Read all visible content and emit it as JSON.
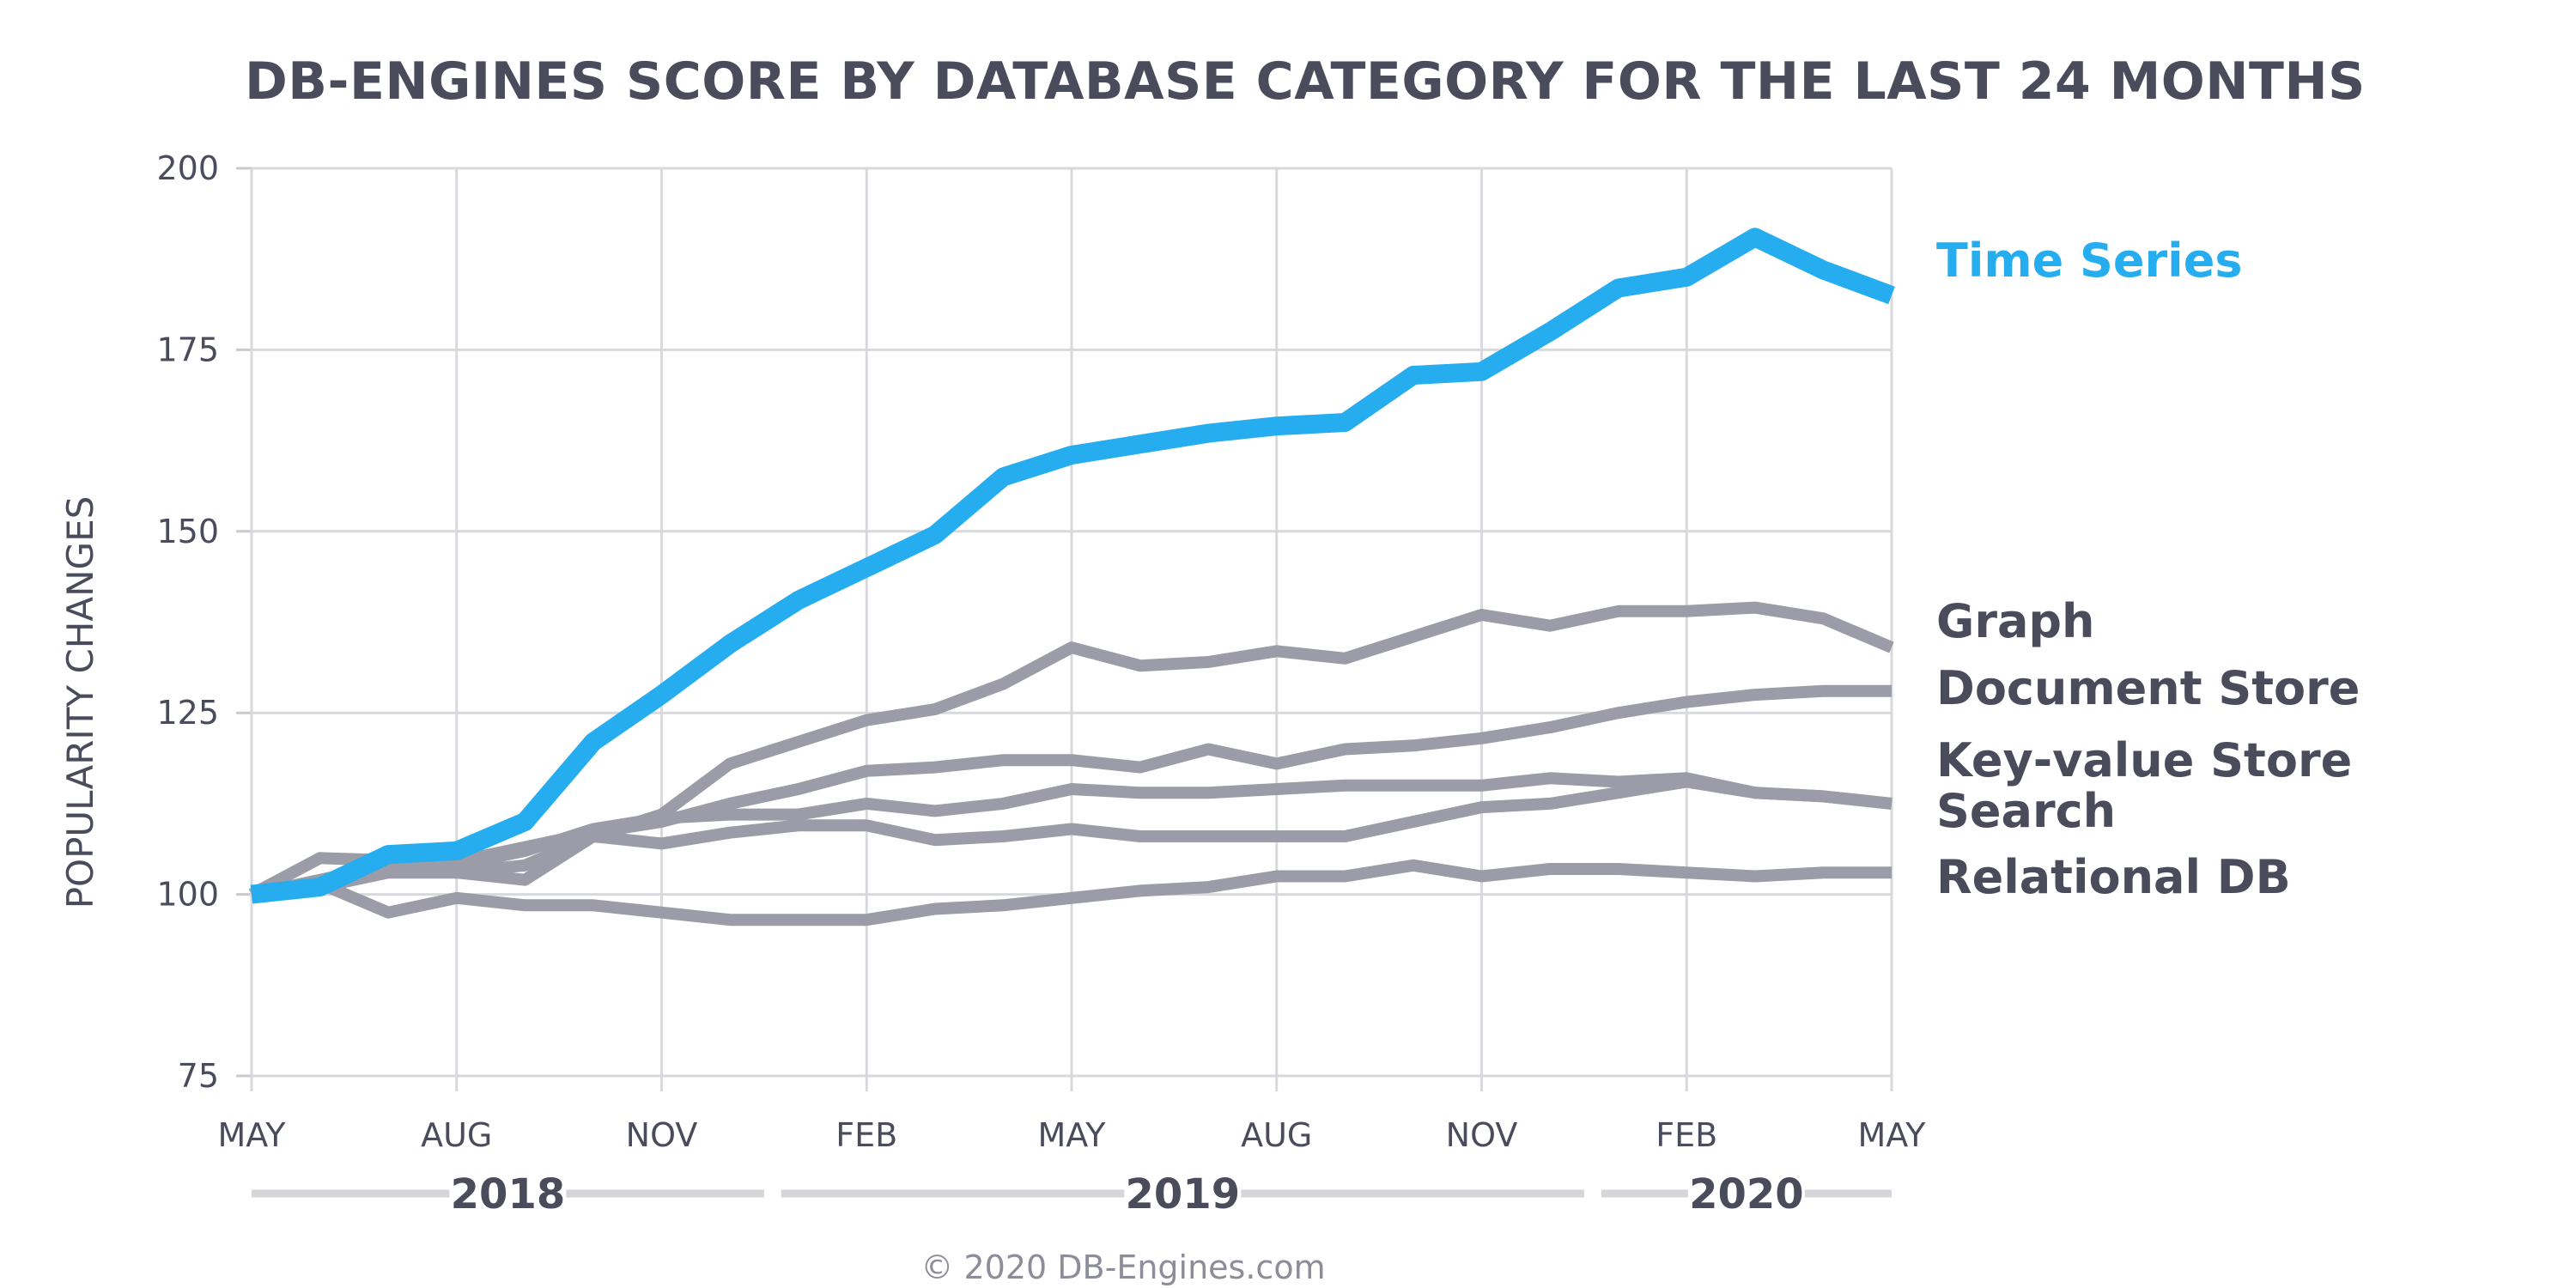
{
  "chart_data": {
    "type": "line",
    "title": "DB-ENGINES SCORE BY DATABASE CATEGORY FOR THE LAST 24 MONTHS",
    "ylabel": "POPULARITY CHANGES",
    "xlabel": "",
    "ylim": [
      75,
      200
    ],
    "yticks": [
      75,
      100,
      125,
      150,
      175,
      200
    ],
    "x": [
      0,
      1,
      2,
      3,
      4,
      5,
      6,
      7,
      8,
      9,
      10,
      11,
      12,
      13,
      14,
      15,
      16,
      17,
      18,
      19,
      20,
      21,
      22,
      23,
      24
    ],
    "xticks": [
      {
        "x": 0,
        "label": "MAY"
      },
      {
        "x": 3,
        "label": "AUG"
      },
      {
        "x": 6,
        "label": "NOV"
      },
      {
        "x": 9,
        "label": "FEB"
      },
      {
        "x": 12,
        "label": "MAY"
      },
      {
        "x": 15,
        "label": "AUG"
      },
      {
        "x": 18,
        "label": "NOV"
      },
      {
        "x": 21,
        "label": "FEB"
      },
      {
        "x": 24,
        "label": "MAY"
      }
    ],
    "years": [
      {
        "label": "2018",
        "from": 0,
        "to": 7.5
      },
      {
        "label": "2019",
        "from": 7.75,
        "to": 19.5
      },
      {
        "label": "2020",
        "from": 19.75,
        "to": 24
      }
    ],
    "grid": true,
    "series": [
      {
        "name": "Graph",
        "highlight": false,
        "values": [
          100,
          105,
          104.7,
          103,
          102,
          108,
          111,
          118,
          121,
          124,
          125.5,
          129,
          134,
          131.5,
          132,
          133.5,
          132.5,
          135.5,
          138.5,
          137,
          139,
          139,
          139.5,
          138,
          134
        ]
      },
      {
        "name": "Document Store",
        "highlight": false,
        "values": [
          100,
          101.5,
          103.5,
          104.5,
          106.5,
          108.5,
          110,
          112.5,
          114.5,
          117,
          117.5,
          118.5,
          118.5,
          117.5,
          120,
          118,
          120,
          120.5,
          121.5,
          123,
          125,
          126.5,
          127.5,
          128,
          128
        ]
      },
      {
        "name": "Key-value Store",
        "highlight": false,
        "values": [
          100,
          102,
          104,
          104,
          106,
          109,
          110.5,
          111,
          111,
          112.5,
          111.5,
          112.5,
          114.5,
          114,
          114,
          114.5,
          115,
          115,
          115,
          116,
          115.5,
          116,
          114,
          113.5,
          112.5
        ]
      },
      {
        "name": "Search",
        "highlight": false,
        "values": [
          100,
          101,
          103,
          103,
          104,
          108,
          107,
          108.5,
          109.5,
          109.5,
          107.5,
          108,
          109,
          108,
          108,
          108,
          108,
          110,
          112,
          112.5,
          114,
          115.5,
          114,
          113.5,
          112.5
        ]
      },
      {
        "name": "Relational DB",
        "highlight": false,
        "values": [
          100,
          101.5,
          97.5,
          99.5,
          98.5,
          98.5,
          97.5,
          96.5,
          96.5,
          96.5,
          98,
          98.5,
          99.5,
          100.5,
          101,
          102.5,
          102.5,
          104,
          102.5,
          103.5,
          103.5,
          103,
          102.5,
          103,
          103
        ]
      },
      {
        "name": "Time Series",
        "highlight": true,
        "values": [
          100,
          101,
          105.5,
          106,
          110,
          121,
          127.5,
          134.5,
          140.5,
          145,
          149.5,
          157.5,
          160.5,
          162,
          163.5,
          164.5,
          165,
          171.5,
          172,
          177.5,
          183.5,
          185,
          190.5,
          186,
          182.5
        ]
      }
    ],
    "copyright": "© 2020 DB-Engines.com"
  },
  "colors": {
    "highlight": "#26adf0",
    "series": "#9c9ca8",
    "text": "#4a4c5c",
    "grid": "#d9d9dd",
    "year_bar": "#d6d6da"
  }
}
